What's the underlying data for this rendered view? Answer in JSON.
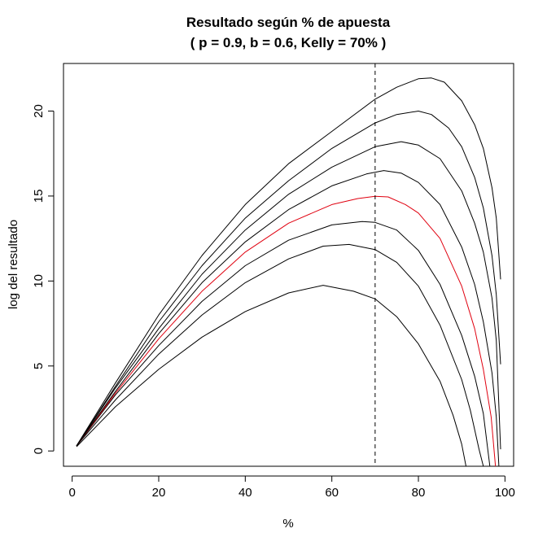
{
  "chart_data": {
    "type": "line",
    "title": "Resultado según % de apuesta",
    "subtitle": "( p = 0.9, b = 0.6, Kelly = 70% )",
    "xlabel": "%",
    "ylabel": "log del resultado",
    "xlim": [
      -2,
      102
    ],
    "ylim": [
      -0.9,
      22.8
    ],
    "x_ticks": [
      0,
      20,
      40,
      60,
      80,
      100
    ],
    "y_ticks": [
      0,
      5,
      10,
      15,
      20
    ],
    "grid": false,
    "legend": "none",
    "reference_line": {
      "x": 70,
      "style": "dashed",
      "color": "#000000"
    },
    "series": [
      {
        "color": "#000000",
        "points": [
          [
            1,
            0.25
          ],
          [
            10,
            2.6
          ],
          [
            20,
            4.8
          ],
          [
            30,
            6.7
          ],
          [
            40,
            8.2
          ],
          [
            50,
            9.3
          ],
          [
            58,
            9.75
          ],
          [
            65,
            9.4
          ],
          [
            70,
            8.95
          ],
          [
            75,
            7.9
          ],
          [
            80,
            6.3
          ],
          [
            85,
            4.1
          ],
          [
            88,
            2.1
          ],
          [
            90,
            0.4
          ],
          [
            91,
            -0.9
          ]
        ]
      },
      {
        "color": "#000000",
        "points": [
          [
            1,
            0.3
          ],
          [
            10,
            3.0
          ],
          [
            20,
            5.7
          ],
          [
            30,
            8.0
          ],
          [
            40,
            9.9
          ],
          [
            50,
            11.3
          ],
          [
            58,
            12.05
          ],
          [
            64,
            12.15
          ],
          [
            70,
            11.85
          ],
          [
            75,
            11.1
          ],
          [
            80,
            9.7
          ],
          [
            85,
            7.4
          ],
          [
            90,
            4.2
          ],
          [
            92,
            2.4
          ],
          [
            94,
            0.1
          ],
          [
            95,
            -0.9
          ]
        ]
      },
      {
        "color": "#000000",
        "points": [
          [
            1,
            0.3
          ],
          [
            10,
            3.3
          ],
          [
            20,
            6.2
          ],
          [
            30,
            8.8
          ],
          [
            40,
            10.9
          ],
          [
            50,
            12.4
          ],
          [
            60,
            13.3
          ],
          [
            67,
            13.5
          ],
          [
            70,
            13.45
          ],
          [
            75,
            13.0
          ],
          [
            80,
            11.8
          ],
          [
            85,
            9.8
          ],
          [
            90,
            6.8
          ],
          [
            93,
            4.4
          ],
          [
            95,
            2.2
          ],
          [
            96.5,
            -0.9
          ]
        ]
      },
      {
        "color": "#e0000f",
        "points": [
          [
            1,
            0.3
          ],
          [
            10,
            3.4
          ],
          [
            20,
            6.6
          ],
          [
            30,
            9.4
          ],
          [
            40,
            11.7
          ],
          [
            50,
            13.4
          ],
          [
            60,
            14.5
          ],
          [
            66,
            14.85
          ],
          [
            70,
            14.98
          ],
          [
            73,
            14.95
          ],
          [
            77,
            14.5
          ],
          [
            80,
            14.0
          ],
          [
            85,
            12.5
          ],
          [
            90,
            9.7
          ],
          [
            93,
            7.2
          ],
          [
            95,
            4.8
          ],
          [
            96.8,
            2.0
          ],
          [
            97.8,
            -0.9
          ]
        ]
      },
      {
        "color": "#000000",
        "points": [
          [
            1,
            0.3
          ],
          [
            10,
            3.5
          ],
          [
            20,
            6.9
          ],
          [
            30,
            9.9
          ],
          [
            40,
            12.3
          ],
          [
            50,
            14.2
          ],
          [
            60,
            15.6
          ],
          [
            68,
            16.3
          ],
          [
            72,
            16.5
          ],
          [
            76,
            16.35
          ],
          [
            80,
            15.8
          ],
          [
            85,
            14.5
          ],
          [
            90,
            12.0
          ],
          [
            93,
            9.8
          ],
          [
            95,
            7.6
          ],
          [
            97,
            4.6
          ],
          [
            98,
            2.0
          ],
          [
            98.6,
            -0.9
          ]
        ]
      },
      {
        "color": "#000000",
        "points": [
          [
            1,
            0.3
          ],
          [
            10,
            3.7
          ],
          [
            20,
            7.2
          ],
          [
            30,
            10.4
          ],
          [
            40,
            13.0
          ],
          [
            50,
            15.1
          ],
          [
            60,
            16.7
          ],
          [
            70,
            17.9
          ],
          [
            76,
            18.2
          ],
          [
            80,
            18.0
          ],
          [
            85,
            17.2
          ],
          [
            90,
            15.3
          ],
          [
            93,
            13.4
          ],
          [
            95,
            11.7
          ],
          [
            97,
            9.0
          ],
          [
            98,
            6.5
          ],
          [
            99,
            0.1
          ]
        ]
      },
      {
        "color": "#000000",
        "points": [
          [
            1,
            0.3
          ],
          [
            10,
            3.8
          ],
          [
            20,
            7.6
          ],
          [
            30,
            10.9
          ],
          [
            40,
            13.7
          ],
          [
            50,
            15.9
          ],
          [
            60,
            17.8
          ],
          [
            70,
            19.3
          ],
          [
            75,
            19.8
          ],
          [
            80,
            20.0
          ],
          [
            83,
            19.8
          ],
          [
            87,
            19.0
          ],
          [
            90,
            17.9
          ],
          [
            93,
            16.1
          ],
          [
            95,
            14.3
          ],
          [
            97,
            11.5
          ],
          [
            98,
            9.2
          ],
          [
            99,
            5.1
          ]
        ]
      },
      {
        "color": "#000000",
        "points": [
          [
            1,
            0.3
          ],
          [
            10,
            4.0
          ],
          [
            20,
            8.0
          ],
          [
            30,
            11.5
          ],
          [
            40,
            14.5
          ],
          [
            50,
            16.9
          ],
          [
            60,
            18.8
          ],
          [
            70,
            20.7
          ],
          [
            75,
            21.4
          ],
          [
            80,
            21.9
          ],
          [
            83,
            21.95
          ],
          [
            86,
            21.7
          ],
          [
            90,
            20.6
          ],
          [
            93,
            19.2
          ],
          [
            95,
            17.8
          ],
          [
            97,
            15.5
          ],
          [
            98,
            13.7
          ],
          [
            99,
            10.1
          ]
        ]
      }
    ]
  }
}
